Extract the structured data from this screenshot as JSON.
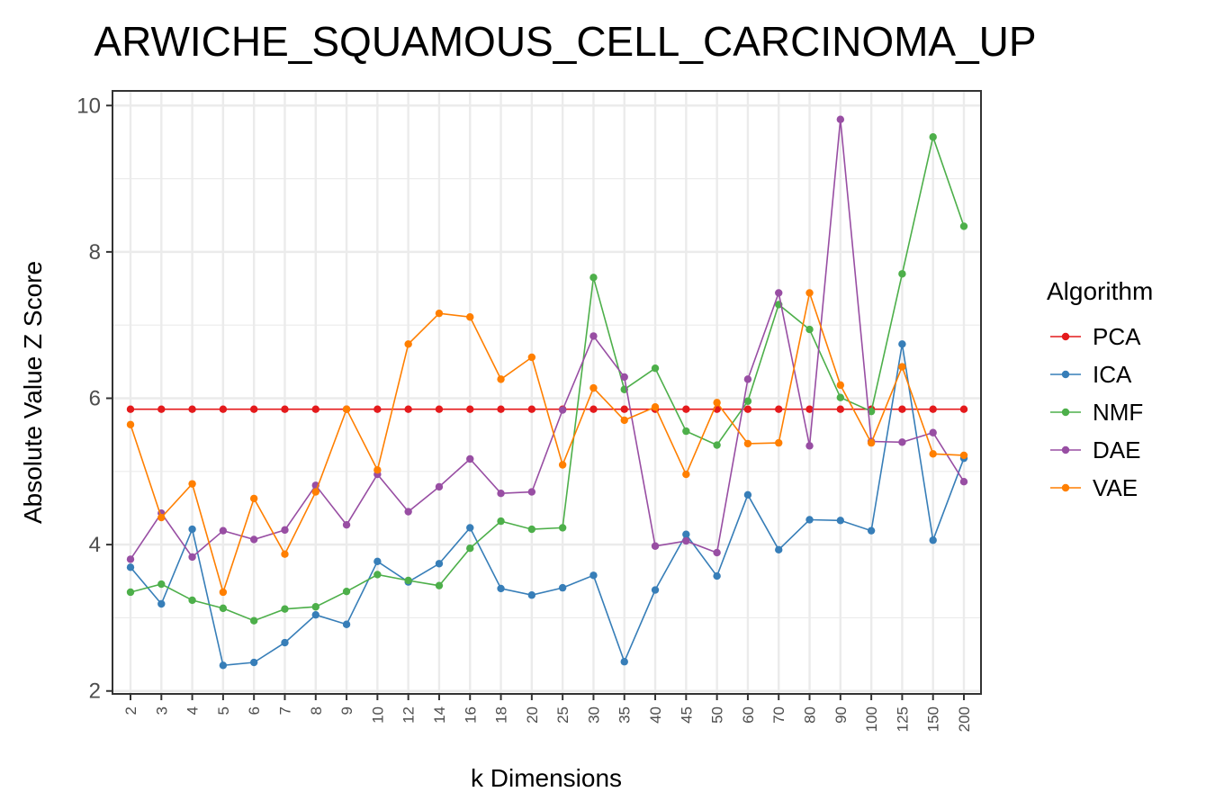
{
  "chart_data": {
    "type": "line",
    "title": "ARWICHE_SQUAMOUS_CELL_CARCINOMA_UP",
    "xlabel": "k Dimensions",
    "ylabel": "Absolute Value Z Score",
    "ylim": [
      1.96,
      10.2
    ],
    "yticks": [
      2,
      4,
      6,
      8,
      10
    ],
    "grid": true,
    "legend_title": "Algorithm",
    "legend_position": "right",
    "categories": [
      "2",
      "3",
      "4",
      "5",
      "6",
      "7",
      "8",
      "9",
      "10",
      "12",
      "14",
      "16",
      "18",
      "20",
      "25",
      "30",
      "35",
      "40",
      "45",
      "50",
      "60",
      "70",
      "80",
      "90",
      "100",
      "125",
      "150",
      "200"
    ],
    "series": [
      {
        "name": "PCA",
        "color": "#E41A1C",
        "values": [
          5.85,
          5.85,
          5.85,
          5.85,
          5.85,
          5.85,
          5.85,
          5.85,
          5.85,
          5.85,
          5.85,
          5.85,
          5.85,
          5.85,
          5.85,
          5.85,
          5.85,
          5.85,
          5.85,
          5.85,
          5.85,
          5.85,
          5.85,
          5.85,
          5.85,
          5.85,
          5.85,
          5.85
        ]
      },
      {
        "name": "ICA",
        "color": "#377EB8",
        "values": [
          3.69,
          3.19,
          4.21,
          2.35,
          2.39,
          2.66,
          3.04,
          2.91,
          3.77,
          3.49,
          3.74,
          4.23,
          3.4,
          3.31,
          3.41,
          3.58,
          2.4,
          3.38,
          4.14,
          3.57,
          4.68,
          3.93,
          4.34,
          4.33,
          4.19,
          6.74,
          4.06,
          5.18
        ]
      },
      {
        "name": "NMF",
        "color": "#4DAF4A",
        "values": [
          3.35,
          3.46,
          3.24,
          3.13,
          2.96,
          3.12,
          3.15,
          3.36,
          3.59,
          3.51,
          3.44,
          3.95,
          4.32,
          4.21,
          4.23,
          7.65,
          6.12,
          6.41,
          5.55,
          5.36,
          5.96,
          7.28,
          6.94,
          6.01,
          5.82,
          7.7,
          9.57,
          8.35
        ]
      },
      {
        "name": "DAE",
        "color": "#984EA3",
        "values": [
          3.8,
          4.43,
          3.83,
          4.19,
          4.07,
          4.2,
          4.81,
          4.27,
          4.96,
          4.45,
          4.79,
          5.17,
          4.7,
          4.72,
          5.84,
          6.85,
          6.29,
          3.98,
          4.05,
          3.89,
          6.26,
          7.44,
          5.35,
          9.81,
          5.41,
          5.4,
          5.53,
          4.86
        ]
      },
      {
        "name": "VAE",
        "color": "#FF7F00",
        "values": [
          5.64,
          4.37,
          4.83,
          3.35,
          4.63,
          3.87,
          4.72,
          5.85,
          5.02,
          6.74,
          7.16,
          7.11,
          6.26,
          6.56,
          5.09,
          6.14,
          5.7,
          5.88,
          4.96,
          5.94,
          5.38,
          5.39,
          7.44,
          6.18,
          5.39,
          6.43,
          5.24,
          5.22
        ]
      }
    ]
  }
}
